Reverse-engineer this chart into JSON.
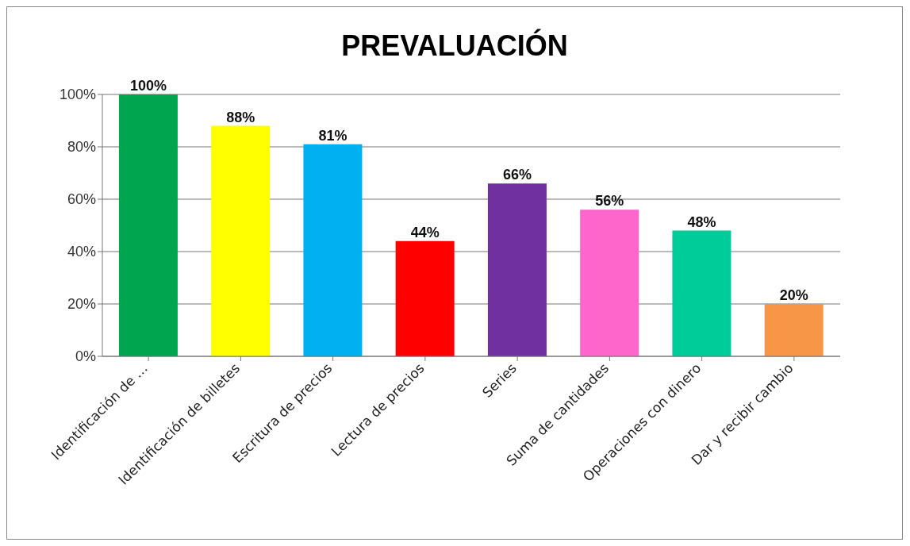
{
  "chart_data": {
    "type": "bar",
    "title": "PREVALUACIÓN",
    "categories": [
      "Identificación de …",
      "Identificación de billetes",
      "Escritura de precios",
      "Lectura de precios",
      "Series",
      "Suma de cantidades",
      "Operaciones con dinero",
      "Dar y recibir cambio"
    ],
    "values": [
      100,
      88,
      81,
      44,
      66,
      56,
      48,
      20
    ],
    "colors": [
      "#00a550",
      "#ffff00",
      "#00b0f0",
      "#ff0000",
      "#7030a0",
      "#ff66cc",
      "#00cc99",
      "#f79646"
    ],
    "value_labels": [
      "100%",
      "88%",
      "81%",
      "44%",
      "66%",
      "56%",
      "48%",
      "20%"
    ],
    "ylim": [
      0,
      100
    ],
    "yticks": [
      {
        "value": 0,
        "label": "0%"
      },
      {
        "value": 20,
        "label": "20%"
      },
      {
        "value": 40,
        "label": "40%"
      },
      {
        "value": 60,
        "label": "60%"
      },
      {
        "value": 80,
        "label": "80%"
      },
      {
        "value": 100,
        "label": "100%"
      }
    ],
    "grid": "y"
  }
}
